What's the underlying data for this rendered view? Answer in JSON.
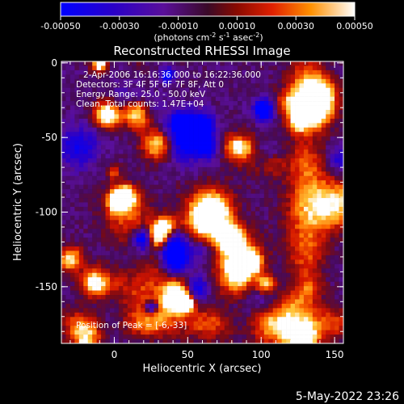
{
  "colorbar": {
    "ticks": [
      "-0.00050",
      "-0.00030",
      "-0.00010",
      "0.00010",
      "0.00030",
      "0.00050"
    ],
    "unit_parts": [
      "(photons cm",
      "-2",
      " s",
      "-1",
      " asec",
      "-2",
      ")"
    ]
  },
  "chart_data": {
    "type": "heatmap",
    "title": "Reconstructed RHESSI Image",
    "xlabel": "Heliocentric X (arcsec)",
    "ylabel": "Heliocentric Y (arcsec)",
    "xlim": [
      -36,
      156
    ],
    "ylim": [
      -188,
      1
    ],
    "x_ticks": [
      "0",
      "50",
      "100",
      "150"
    ],
    "y_ticks": [
      "0",
      "-50",
      "-100",
      "-150"
    ],
    "color_range": [
      -0.0005,
      0.0005
    ],
    "annotations": [
      "2-Apr-2006 16:16:36.000 to 16:22:36.000",
      "Detectors: 3F 4F 5F 6F 7F 8F, Att 0",
      "Energy Range: 25.0 - 50.0 keV",
      "Clean.  Total counts: 1.47E+04"
    ],
    "peak_label": "Position of Peak = [-6,-33]",
    "peak_position": [
      -6,
      -33
    ]
  },
  "footer": {
    "date": "5-May-2022 23:26"
  }
}
